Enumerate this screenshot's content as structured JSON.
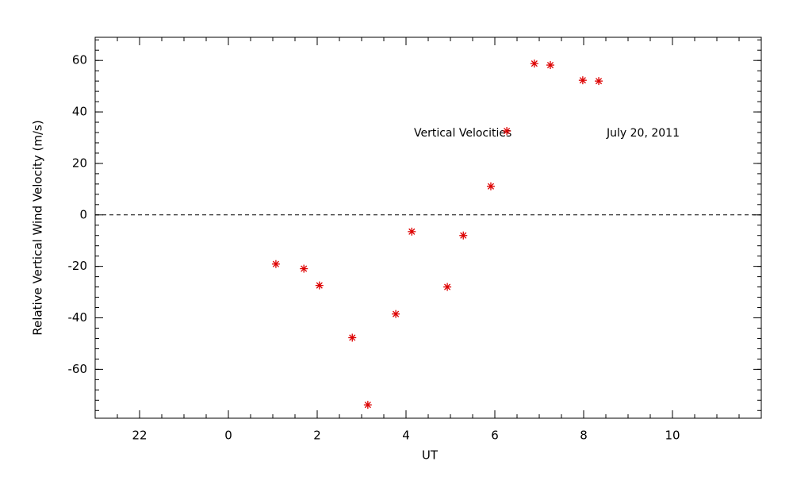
{
  "chart_data": {
    "type": "scatter",
    "xlabel": "UT",
    "ylabel": "Relative Vertical Wind Velocity (m/s)",
    "annotations": [
      "Vertical Velocities",
      "July 20, 2011"
    ],
    "xlim": [
      -3,
      12
    ],
    "ylim": [
      -79,
      69
    ],
    "xticks": [
      {
        "value": -2,
        "label": "22"
      },
      0,
      2,
      4,
      6,
      8,
      10
    ],
    "yticks": [
      -60,
      -40,
      -20,
      0,
      20,
      40,
      60
    ],
    "x_minor": 4,
    "y_minor": 5,
    "reference_line": 0,
    "series": [
      {
        "color": "#dd0000",
        "marker": "asterisk",
        "x": [
          1.07,
          1.7,
          2.05,
          2.79,
          3.14,
          3.77,
          4.13,
          4.93,
          5.29,
          5.91,
          6.27,
          6.89,
          7.25,
          7.98,
          8.34
        ],
        "values": [
          -19.1,
          -20.9,
          -27.4,
          -47.7,
          -73.8,
          -38.5,
          -6.5,
          -28.0,
          -8.0,
          11.1,
          32.6,
          58.8,
          58.2,
          52.3,
          52.0
        ]
      }
    ]
  }
}
